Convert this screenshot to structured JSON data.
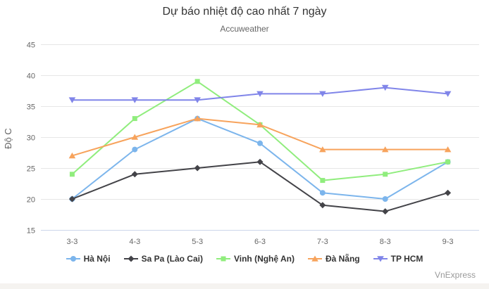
{
  "page": {
    "background_color": "#ffffff",
    "footer_strip_color": "#f5f3f0"
  },
  "chart_data": {
    "type": "line",
    "title": "Dự báo nhiệt độ cao nhất 7 ngày",
    "subtitle": "Accuweather",
    "ylabel": "Độ C",
    "xlabel": "",
    "credit": "VnExpress",
    "categories": [
      "3-3",
      "4-3",
      "5-3",
      "6-3",
      "7-3",
      "8-3",
      "9-3"
    ],
    "ylim": [
      15,
      45
    ],
    "ytick_step": 5,
    "grid": true,
    "legend_position": "bottom",
    "series": [
      {
        "name": "Hà Nội",
        "color": "#7cb5ec",
        "marker": "circle",
        "values": [
          20,
          28,
          33,
          29,
          21,
          20,
          26
        ]
      },
      {
        "name": "Sa Pa (Lào Cai)",
        "color": "#434348",
        "marker": "diamond",
        "values": [
          20,
          24,
          25,
          26,
          19,
          18,
          21
        ]
      },
      {
        "name": "Vinh (Nghệ An)",
        "color": "#90ed7d",
        "marker": "square",
        "values": [
          24,
          33,
          39,
          32,
          23,
          24,
          26
        ]
      },
      {
        "name": "Đà Nẵng",
        "color": "#f7a35c",
        "marker": "triangle",
        "values": [
          27,
          30,
          33,
          32,
          28,
          28,
          28
        ]
      },
      {
        "name": "TP HCM",
        "color": "#8085e9",
        "marker": "triangle-down",
        "values": [
          36,
          36,
          36,
          37,
          37,
          38,
          37
        ]
      }
    ],
    "style": {
      "grid_color": "#e6e6e6",
      "axis_line_color": "#ccd6eb",
      "title_color": "#333333",
      "subtitle_color": "#666666",
      "tick_color": "#666666",
      "legend_text_color": "#333333",
      "credit_color": "#999999"
    }
  }
}
